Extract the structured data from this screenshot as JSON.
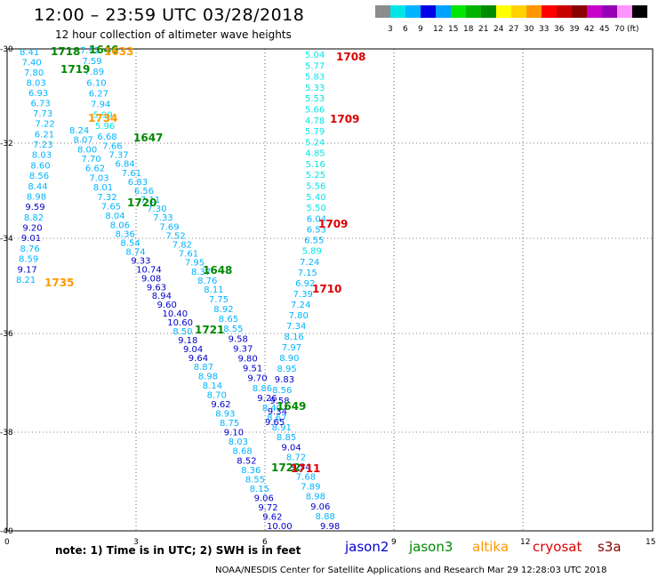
{
  "title": "12:00 – 23:59 UTC 03/28/2018",
  "subtitle": "12 hour collection of altimeter wave heights",
  "colorbar": {
    "colors": [
      "#8c8c8c",
      "#00e6e6",
      "#00b4ff",
      "#0000e6",
      "#00a0ff",
      "#00e600",
      "#00b400",
      "#008c00",
      "#ffff00",
      "#ffd200",
      "#ff9600",
      "#ff0000",
      "#c80000",
      "#8c0000",
      "#c800c8",
      "#9600b4",
      "#ff96ff",
      "#000000"
    ],
    "labels": [
      "3",
      "6",
      "9",
      "12",
      "15",
      "18",
      "21",
      "24",
      "27",
      "30",
      "33",
      "36",
      "39",
      "42",
      "45",
      "70",
      "(ft)"
    ]
  },
  "axes": {
    "x_ticks": [
      "0",
      "3",
      "6",
      "9",
      "12",
      "15"
    ],
    "y_ticks": [
      "-30",
      "-32",
      "-34",
      "-36",
      "-38",
      "-40"
    ]
  },
  "note": "note: 1) Time is in UTC; 2) SWH is in feet",
  "satellites": [
    {
      "name": "jason2",
      "color": "#0000cc"
    },
    {
      "name": "jason3",
      "color": "#008800"
    },
    {
      "name": "altika",
      "color": "#ff9900"
    },
    {
      "name": "cryosat",
      "color": "#dd0000"
    },
    {
      "name": "s3a",
      "color": "#880000"
    }
  ],
  "credit": "NOAA/NESDIS Center for Satellite Applications and Research    Mar 29 12:28:03 UTC 2018",
  "tracks": [
    {
      "id": "track-a",
      "values": [
        "8.41",
        "7.40",
        "7.80",
        "8.03",
        "6.93",
        "6.73",
        "7.73",
        "7.22",
        "6.21",
        "7.23",
        "8.03",
        "8.60",
        "8.56",
        "8.44",
        "8.98",
        "9.59",
        "8.82",
        "9.20",
        "9.01",
        "8.76",
        "8.59",
        "9.17",
        "8.21"
      ],
      "colors": [
        "#00b4ff",
        "#00b4ff",
        "#00b4ff",
        "#00b4ff",
        "#00b4ff",
        "#00b4ff",
        "#00b4ff",
        "#00b4ff",
        "#00b4ff",
        "#00b4ff",
        "#00b4ff",
        "#00b4ff",
        "#00b4ff",
        "#00b4ff",
        "#00b4ff",
        "#0000cc",
        "#00b4ff",
        "#0000cc",
        "#0000cc",
        "#00b4ff",
        "#00b4ff",
        "#0000cc",
        "#00b4ff"
      ]
    },
    {
      "id": "track-b",
      "values": [
        "7.92",
        "7.59",
        "7.89",
        "6.10",
        "6.27",
        "7.94",
        "5.99",
        "5.96",
        "6.68",
        "7.66",
        "7.37",
        "6.84",
        "7.61",
        "6.83",
        "6.56",
        "7.11",
        "7.30",
        "7.33",
        "7.69",
        "7.52",
        "7.82",
        "7.61",
        "7.95",
        "8.37",
        "8.76",
        "8.11",
        "7.75",
        "8.92",
        "8.65",
        "8.55",
        "9.58",
        "9.37",
        "9.80",
        "9.51",
        "9.70",
        "8.86",
        "9.26",
        "8.40",
        "8.67",
        "8.91",
        "8.85",
        "9.04",
        "8.72",
        "9.54",
        "7.68",
        "7.89",
        "8.98",
        "9.06",
        "8.88",
        "9.98"
      ],
      "colors": [
        "#00b4ff",
        "#00b4ff",
        "#00b4ff",
        "#00b4ff",
        "#00b4ff",
        "#00b4ff",
        "#00e6e6",
        "#00e6e6",
        "#00b4ff",
        "#00b4ff",
        "#00b4ff",
        "#00b4ff",
        "#00b4ff",
        "#00b4ff",
        "#00b4ff",
        "#00b4ff",
        "#00b4ff",
        "#00b4ff",
        "#00b4ff",
        "#00b4ff",
        "#00b4ff",
        "#00b4ff",
        "#00b4ff",
        "#00b4ff",
        "#00b4ff",
        "#00b4ff",
        "#00b4ff",
        "#00b4ff",
        "#00b4ff",
        "#00b4ff",
        "#0000cc",
        "#0000cc",
        "#0000cc",
        "#0000cc",
        "#0000cc",
        "#00b4ff",
        "#0000cc",
        "#00b4ff",
        "#00b4ff",
        "#00b4ff",
        "#00b4ff",
        "#0000cc",
        "#00b4ff",
        "#0000cc",
        "#00b4ff",
        "#00b4ff",
        "#00b4ff",
        "#0000cc",
        "#00b4ff",
        "#0000cc"
      ]
    },
    {
      "id": "track-c",
      "values": [
        "8.24",
        "8.07",
        "8.00",
        "7.70",
        "6.62",
        "7.03",
        "8.01",
        "7.32",
        "7.65",
        "8.04",
        "8.06",
        "8.36",
        "8.54",
        "8.74",
        "9.33",
        "10.74",
        "9.08",
        "9.63",
        "8.94",
        "9.60",
        "10.40",
        "10.60",
        "8.50",
        "9.18",
        "9.04",
        "9.64",
        "8.87",
        "8.98",
        "8.14",
        "8.70",
        "9.62",
        "8.93",
        "8.75",
        "9.10",
        "8.03",
        "8.68",
        "8.52",
        "8.36",
        "8.55",
        "8.15",
        "9.06",
        "9.72",
        "9.62",
        "10.00"
      ],
      "colors": [
        "#00b4ff",
        "#00b4ff",
        "#00b4ff",
        "#00b4ff",
        "#00b4ff",
        "#00b4ff",
        "#00b4ff",
        "#00b4ff",
        "#00b4ff",
        "#00b4ff",
        "#00b4ff",
        "#00b4ff",
        "#00b4ff",
        "#00b4ff",
        "#0000cc",
        "#0000cc",
        "#0000cc",
        "#0000cc",
        "#0000cc",
        "#0000cc",
        "#0000cc",
        "#0000cc",
        "#00b4ff",
        "#0000cc",
        "#0000cc",
        "#0000cc",
        "#00b4ff",
        "#00b4ff",
        "#00b4ff",
        "#00b4ff",
        "#0000cc",
        "#00b4ff",
        "#00b4ff",
        "#0000cc",
        "#00b4ff",
        "#00b4ff",
        "#0000cc",
        "#00b4ff",
        "#00b4ff",
        "#00b4ff",
        "#0000cc",
        "#0000cc",
        "#0000cc",
        "#0000cc"
      ]
    },
    {
      "id": "track-d",
      "values": [
        "5.04",
        "5.77",
        "5.83",
        "5.33",
        "5.53",
        "5.66",
        "4.78",
        "5.79",
        "5.24",
        "4.85",
        "5.16",
        "5.25",
        "5.56",
        "5.40",
        "5.50",
        "6.04",
        "6.53",
        "6.55",
        "5.89",
        "7.24",
        "7.15",
        "6.92",
        "7.39",
        "7.24",
        "7.80",
        "7.34",
        "8.16",
        "7.97",
        "8.90",
        "8.95",
        "9.83",
        "8.56",
        "9.58",
        "9.34",
        "9.65"
      ],
      "colors": [
        "#00e6e6",
        "#00e6e6",
        "#00e6e6",
        "#00e6e6",
        "#00e6e6",
        "#00e6e6",
        "#00e6e6",
        "#00e6e6",
        "#00e6e6",
        "#00e6e6",
        "#00e6e6",
        "#00e6e6",
        "#00e6e6",
        "#00e6e6",
        "#00e6e6",
        "#00b4ff",
        "#00b4ff",
        "#00b4ff",
        "#00e6e6",
        "#00b4ff",
        "#00b4ff",
        "#00b4ff",
        "#00b4ff",
        "#00b4ff",
        "#00b4ff",
        "#00b4ff",
        "#00b4ff",
        "#00b4ff",
        "#00b4ff",
        "#00b4ff",
        "#0000cc",
        "#00b4ff",
        "#0000cc",
        "#0000cc",
        "#0000cc"
      ]
    }
  ],
  "time_labels": [
    {
      "text": "1718",
      "color": "#008800"
    },
    {
      "text": "1646",
      "color": "#008800"
    },
    {
      "text": "1633",
      "color": "#ff9900"
    },
    {
      "text": "1719",
      "color": "#008800"
    },
    {
      "text": "1734",
      "color": "#ff9900"
    },
    {
      "text": "1647",
      "color": "#008800"
    },
    {
      "text": "1720",
      "color": "#008800"
    },
    {
      "text": "1648",
      "color": "#008800"
    },
    {
      "text": "1735",
      "color": "#ff9900"
    },
    {
      "text": "1721",
      "color": "#008800"
    },
    {
      "text": "1649",
      "color": "#008800"
    },
    {
      "text": "1722",
      "color": "#008800"
    },
    {
      "text": "1708",
      "color": "#dd0000"
    },
    {
      "text": "1709",
      "color": "#dd0000"
    },
    {
      "text": "1709",
      "color": "#dd0000"
    },
    {
      "text": "1710",
      "color": "#dd0000"
    },
    {
      "text": "1711",
      "color": "#dd0000"
    }
  ]
}
